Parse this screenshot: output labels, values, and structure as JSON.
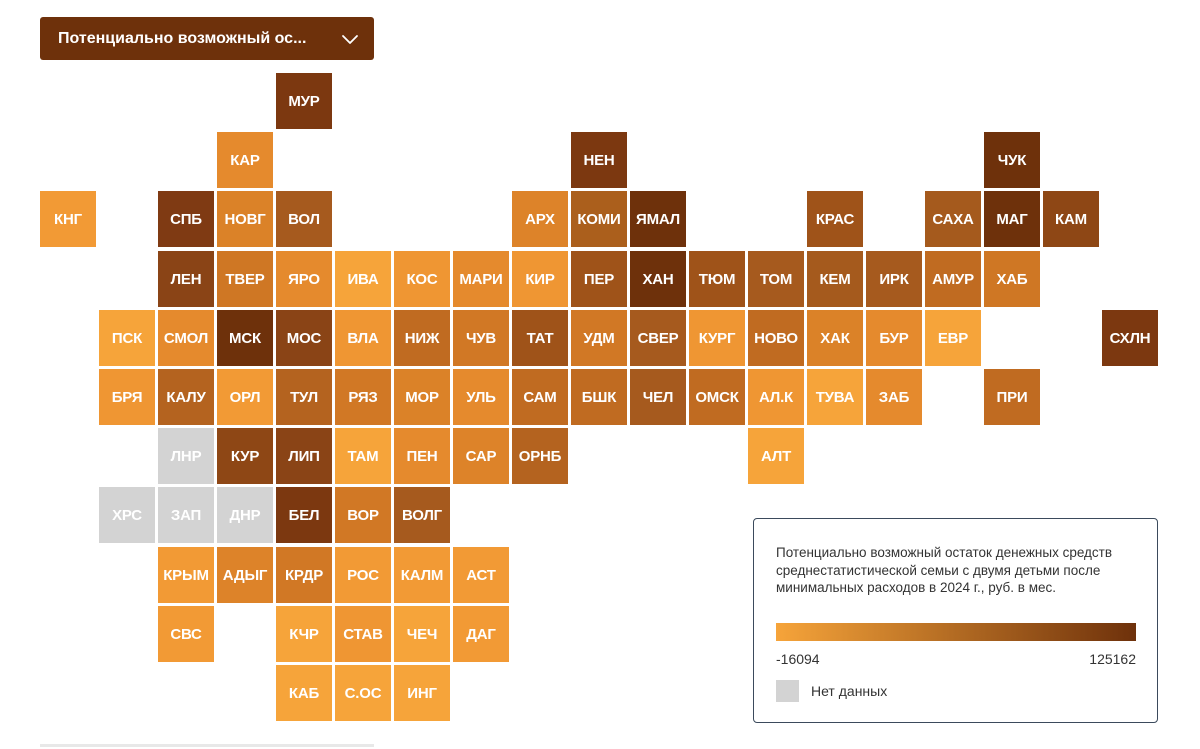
{
  "dropdown": {
    "label": "Потенциально возможный ос...",
    "icon": "chevron-down-icon"
  },
  "legend": {
    "title": "Потенциально возможный остаток денежных средств среднестатистической семьи с двумя детьми после минимальных расходов в 2024 г., руб. в мес.",
    "min_label": "-16094",
    "max_label": "125162",
    "min_value": -16094,
    "max_value": 125162,
    "color_low": "#f6a43a",
    "color_high": "#6e310b",
    "nodata_label": "Нет данных",
    "nodata_color": "#d3d3d3"
  },
  "colors": {
    "dropdown_bg": "#6e310b",
    "legend_border": "#3b4a5c"
  },
  "map": {
    "grid_rows": 11,
    "grid_cols": 19,
    "regions": [
      {
        "code": "МУР",
        "row": 0,
        "col": 4,
        "color": "#7c3810"
      },
      {
        "code": "КАР",
        "row": 1,
        "col": 3,
        "color": "#e58a2d"
      },
      {
        "code": "НЕН",
        "row": 1,
        "col": 9,
        "color": "#7c3810"
      },
      {
        "code": "ЧУК",
        "row": 1,
        "col": 16,
        "color": "#6e310b"
      },
      {
        "code": "КНГ",
        "row": 2,
        "col": 0,
        "color": "#f29a35"
      },
      {
        "code": "СПБ",
        "row": 2,
        "col": 2,
        "color": "#7f3a13"
      },
      {
        "code": "НОВГ",
        "row": 2,
        "col": 3,
        "color": "#db8228"
      },
      {
        "code": "ВОЛ",
        "row": 2,
        "col": 4,
        "color": "#a65a1e"
      },
      {
        "code": "АРХ",
        "row": 2,
        "col": 8,
        "color": "#dd8329"
      },
      {
        "code": "КОМИ",
        "row": 2,
        "col": 9,
        "color": "#ab5f1c"
      },
      {
        "code": "ЯМАЛ",
        "row": 2,
        "col": 10,
        "color": "#6e310b"
      },
      {
        "code": "КРАС",
        "row": 2,
        "col": 13,
        "color": "#9f5319"
      },
      {
        "code": "САХА",
        "row": 2,
        "col": 15,
        "color": "#a55a1d"
      },
      {
        "code": "МАГ",
        "row": 2,
        "col": 16,
        "color": "#6e310b"
      },
      {
        "code": "КАМ",
        "row": 2,
        "col": 17,
        "color": "#8e4715"
      },
      {
        "code": "ЛЕН",
        "row": 3,
        "col": 2,
        "color": "#8a4416"
      },
      {
        "code": "ТВЕР",
        "row": 3,
        "col": 3,
        "color": "#cf7724"
      },
      {
        "code": "ЯРО",
        "row": 3,
        "col": 4,
        "color": "#e58a2d"
      },
      {
        "code": "ИВА",
        "row": 3,
        "col": 5,
        "color": "#f6a43a"
      },
      {
        "code": "КОС",
        "row": 3,
        "col": 6,
        "color": "#ef9633"
      },
      {
        "code": "МАРИ",
        "row": 3,
        "col": 7,
        "color": "#e58a2d"
      },
      {
        "code": "КИР",
        "row": 3,
        "col": 8,
        "color": "#ef9633"
      },
      {
        "code": "ПЕР",
        "row": 3,
        "col": 9,
        "color": "#9f5319"
      },
      {
        "code": "ХАН",
        "row": 3,
        "col": 10,
        "color": "#6e310b"
      },
      {
        "code": "ТЮМ",
        "row": 3,
        "col": 11,
        "color": "#9f5319"
      },
      {
        "code": "ТОМ",
        "row": 3,
        "col": 12,
        "color": "#a65a1e"
      },
      {
        "code": "КЕМ",
        "row": 3,
        "col": 13,
        "color": "#a55a1d"
      },
      {
        "code": "ИРК",
        "row": 3,
        "col": 14,
        "color": "#a65a1e"
      },
      {
        "code": "АМУР",
        "row": 3,
        "col": 15,
        "color": "#c06b21"
      },
      {
        "code": "ХАБ",
        "row": 3,
        "col": 16,
        "color": "#cf7724"
      },
      {
        "code": "ПСК",
        "row": 4,
        "col": 1,
        "color": "#f6a43a"
      },
      {
        "code": "СМОЛ",
        "row": 4,
        "col": 2,
        "color": "#e58a2d"
      },
      {
        "code": "МСК",
        "row": 4,
        "col": 3,
        "color": "#6e310b"
      },
      {
        "code": "МОС",
        "row": 4,
        "col": 4,
        "color": "#8a4416"
      },
      {
        "code": "ВЛА",
        "row": 4,
        "col": 5,
        "color": "#ef9633"
      },
      {
        "code": "НИЖ",
        "row": 4,
        "col": 6,
        "color": "#c06b21"
      },
      {
        "code": "ЧУВ",
        "row": 4,
        "col": 7,
        "color": "#d17825"
      },
      {
        "code": "ТАТ",
        "row": 4,
        "col": 8,
        "color": "#9f5319"
      },
      {
        "code": "УДМ",
        "row": 4,
        "col": 9,
        "color": "#d17825"
      },
      {
        "code": "СВЕР",
        "row": 4,
        "col": 10,
        "color": "#a65a1e"
      },
      {
        "code": "КУРГ",
        "row": 4,
        "col": 11,
        "color": "#ef9633"
      },
      {
        "code": "НОВО",
        "row": 4,
        "col": 12,
        "color": "#c06b21"
      },
      {
        "code": "ХАК",
        "row": 4,
        "col": 13,
        "color": "#db8228"
      },
      {
        "code": "БУР",
        "row": 4,
        "col": 14,
        "color": "#e58a2d"
      },
      {
        "code": "ЕВР",
        "row": 4,
        "col": 15,
        "color": "#f6a43a"
      },
      {
        "code": "СХЛН",
        "row": 4,
        "col": 18,
        "color": "#7c3810"
      },
      {
        "code": "БРЯ",
        "row": 5,
        "col": 1,
        "color": "#ef9633"
      },
      {
        "code": "КАЛУ",
        "row": 5,
        "col": 2,
        "color": "#b4631f"
      },
      {
        "code": "ОРЛ",
        "row": 5,
        "col": 3,
        "color": "#f29a35"
      },
      {
        "code": "ТУЛ",
        "row": 5,
        "col": 4,
        "color": "#b4631f"
      },
      {
        "code": "РЯЗ",
        "row": 5,
        "col": 5,
        "color": "#d17825"
      },
      {
        "code": "МОР",
        "row": 5,
        "col": 6,
        "color": "#db8228"
      },
      {
        "code": "УЛЬ",
        "row": 5,
        "col": 7,
        "color": "#e58a2d"
      },
      {
        "code": "САМ",
        "row": 5,
        "col": 8,
        "color": "#c06b21"
      },
      {
        "code": "БШК",
        "row": 5,
        "col": 9,
        "color": "#c06b21"
      },
      {
        "code": "ЧЕЛ",
        "row": 5,
        "col": 10,
        "color": "#a65a1e"
      },
      {
        "code": "ОМСК",
        "row": 5,
        "col": 11,
        "color": "#c06b21"
      },
      {
        "code": "АЛ.К",
        "row": 5,
        "col": 12,
        "color": "#ef9633"
      },
      {
        "code": "ТУВА",
        "row": 5,
        "col": 13,
        "color": "#f6a43a"
      },
      {
        "code": "ЗАБ",
        "row": 5,
        "col": 14,
        "color": "#e58a2d"
      },
      {
        "code": "ПРИ",
        "row": 5,
        "col": 16,
        "color": "#c06b21"
      },
      {
        "code": "ЛНР",
        "row": 6,
        "col": 2,
        "color": "#d3d3d3"
      },
      {
        "code": "КУР",
        "row": 6,
        "col": 3,
        "color": "#8e4715"
      },
      {
        "code": "ЛИП",
        "row": 6,
        "col": 4,
        "color": "#8a4416"
      },
      {
        "code": "ТАМ",
        "row": 6,
        "col": 5,
        "color": "#f6a43a"
      },
      {
        "code": "ПЕН",
        "row": 6,
        "col": 6,
        "color": "#e58a2d"
      },
      {
        "code": "САР",
        "row": 6,
        "col": 7,
        "color": "#dd8329"
      },
      {
        "code": "ОРНБ",
        "row": 6,
        "col": 8,
        "color": "#b4631f"
      },
      {
        "code": "АЛТ",
        "row": 6,
        "col": 12,
        "color": "#f6a43a"
      },
      {
        "code": "ХРС",
        "row": 7,
        "col": 1,
        "color": "#d3d3d3"
      },
      {
        "code": "ЗАП",
        "row": 7,
        "col": 2,
        "color": "#d3d3d3"
      },
      {
        "code": "ДНР",
        "row": 7,
        "col": 3,
        "color": "#d3d3d3"
      },
      {
        "code": "БЕЛ",
        "row": 7,
        "col": 4,
        "color": "#7c3810"
      },
      {
        "code": "ВОР",
        "row": 7,
        "col": 5,
        "color": "#d17825"
      },
      {
        "code": "ВОЛГ",
        "row": 7,
        "col": 6,
        "color": "#a65a1e"
      },
      {
        "code": "КРЫМ",
        "row": 8,
        "col": 2,
        "color": "#f29a35"
      },
      {
        "code": "АДЫГ",
        "row": 8,
        "col": 3,
        "color": "#dd8329"
      },
      {
        "code": "КРДР",
        "row": 8,
        "col": 4,
        "color": "#d17825"
      },
      {
        "code": "РОС",
        "row": 8,
        "col": 5,
        "color": "#f29a35"
      },
      {
        "code": "КАЛМ",
        "row": 8,
        "col": 6,
        "color": "#f29a35"
      },
      {
        "code": "АСТ",
        "row": 8,
        "col": 7,
        "color": "#f29a35"
      },
      {
        "code": "СВС",
        "row": 9,
        "col": 2,
        "color": "#f29a35"
      },
      {
        "code": "КЧР",
        "row": 9,
        "col": 4,
        "color": "#f6a43a"
      },
      {
        "code": "СТАВ",
        "row": 9,
        "col": 5,
        "color": "#ef9633"
      },
      {
        "code": "ЧЕЧ",
        "row": 9,
        "col": 6,
        "color": "#f6a43a"
      },
      {
        "code": "ДАГ",
        "row": 9,
        "col": 7,
        "color": "#f29a35"
      },
      {
        "code": "КАБ",
        "row": 10,
        "col": 4,
        "color": "#f6a43a"
      },
      {
        "code": "С.ОС",
        "row": 10,
        "col": 5,
        "color": "#f6a43a"
      },
      {
        "code": "ИНГ",
        "row": 10,
        "col": 6,
        "color": "#f6a43a"
      }
    ]
  }
}
